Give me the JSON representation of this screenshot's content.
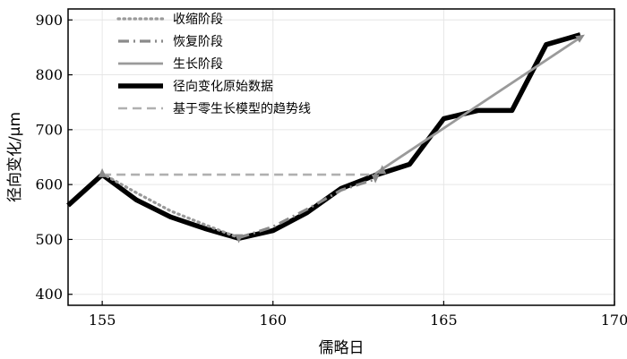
{
  "chart_data": {
    "type": "line",
    "xlabel": "儒略日",
    "ylabel": "径向变化/μm",
    "xlim": [
      154,
      170
    ],
    "ylim": [
      380,
      920
    ],
    "xticks": [
      155,
      160,
      165,
      170
    ],
    "yticks": [
      400,
      500,
      600,
      700,
      800,
      900
    ],
    "grid": true,
    "legend_position": "top-left",
    "series": [
      {
        "name": "收缩阶段",
        "style": "dotted",
        "color": "#9a9a9a",
        "x": [
          155,
          156,
          157,
          158,
          159
        ],
        "y": [
          620,
          585,
          552,
          527,
          503
        ]
      },
      {
        "name": "恢复阶段",
        "style": "dashdot",
        "color": "#8a8a8a",
        "x": [
          159,
          160,
          161,
          162,
          163
        ],
        "y": [
          503,
          523,
          555,
          590,
          610
        ]
      },
      {
        "name": "生长阶段",
        "style": "solid",
        "color": "#9a9a9a",
        "x": [
          163,
          169
        ],
        "y": [
          620,
          868
        ]
      },
      {
        "name": "径向变化原始数据",
        "style": "solid-thick",
        "color": "#000000",
        "x": [
          154,
          155,
          156,
          157,
          158,
          159,
          160,
          161,
          162,
          163,
          164,
          165,
          166,
          167,
          168,
          169
        ],
        "y": [
          562,
          618,
          572,
          541,
          520,
          502,
          516,
          549,
          593,
          617,
          637,
          720,
          735,
          735,
          855,
          873
        ]
      },
      {
        "name": "基于零生长模型的趋势线",
        "style": "dashed",
        "color": "#b0b0b0",
        "x": [
          155,
          163
        ],
        "y": [
          618,
          618
        ]
      }
    ]
  }
}
